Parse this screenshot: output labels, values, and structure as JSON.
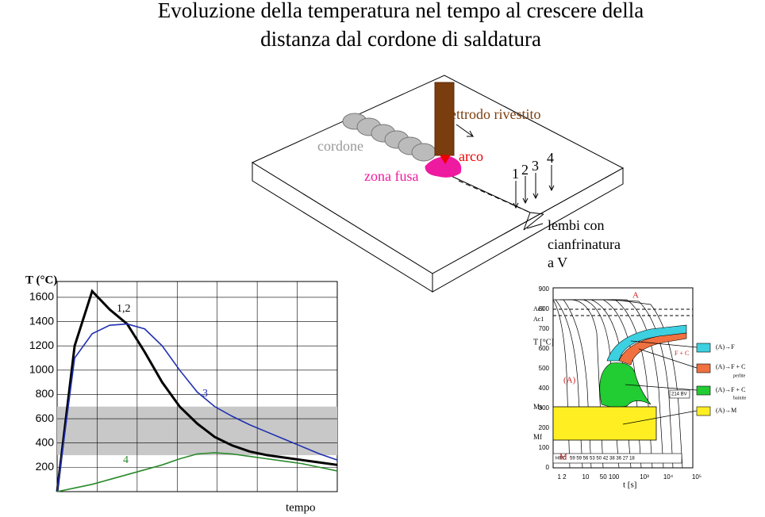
{
  "title": [
    "Evoluzione della temperatura nel tempo al crescere della",
    "distanza dal cordone di saldatura"
  ],
  "welding": {
    "electrode": "elettrodo rivestito",
    "bead": "cordone",
    "arc": "arco",
    "melt": "zona fusa",
    "points": [
      "1",
      "2",
      "3",
      "4"
    ],
    "groove": [
      "lembi con",
      "cianfrinatura",
      "a V"
    ]
  },
  "chart_data": {
    "type": "line",
    "y_label": "T (°C)",
    "x_label": "tempo",
    "categories": [
      null,
      null,
      null,
      null,
      null,
      null,
      null,
      null,
      null,
      null,
      null,
      null,
      null,
      null,
      null,
      null,
      null
    ],
    "series": [
      {
        "name": "1,2",
        "color": "#000000",
        "values": [
          0,
          1200,
          1650,
          1500,
          1380,
          1150,
          900,
          700,
          560,
          450,
          380,
          330,
          300,
          280,
          260,
          240,
          220
        ]
      },
      {
        "name": "3",
        "color": "#1f2fb0",
        "values": [
          0,
          1100,
          1300,
          1370,
          1380,
          1340,
          1200,
          1000,
          820,
          700,
          620,
          550,
          490,
          430,
          370,
          310,
          260
        ]
      },
      {
        "name": "4",
        "color": "#2a8a2a",
        "values": [
          0,
          30,
          60,
          100,
          140,
          180,
          220,
          270,
          310,
          320,
          310,
          290,
          270,
          250,
          230,
          200,
          170
        ]
      }
    ],
    "ylim": [
      0,
      1730
    ],
    "yticks": [
      200,
      400,
      600,
      800,
      1000,
      1200,
      1400,
      1600
    ],
    "band": [
      300,
      700
    ],
    "grid": true
  },
  "cct": {
    "y_label": "T [°C]",
    "x_label": "t [s]",
    "ytick_labels": [
      "0",
      "100",
      "200",
      "300",
      "400",
      "500",
      "600",
      "700",
      "800",
      "900"
    ],
    "xtick_labels": [
      "1 2",
      "10",
      "50 100",
      "10³",
      "10⁴",
      "10⁵"
    ],
    "ac3": "Ac3",
    "ac1": "Ac1",
    "ms": "Ms",
    "mf": "Mf",
    "a_top": "A",
    "a_mid": "(A)",
    "m": "M",
    "fc": "F + C",
    "hrc": "HRC",
    "hrc_values": "59  59 56 53 50 42 38 36 27   18",
    "hv": "214 BV",
    "legend": [
      "(A)→F",
      "(A)→F + C",
      "perlite",
      "(A)→F + C",
      "bainite",
      "(A)→M"
    ]
  }
}
